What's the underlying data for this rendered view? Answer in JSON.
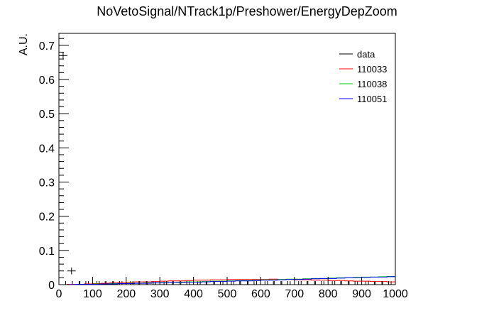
{
  "chart_data": {
    "type": "line",
    "title": "NoVetoSignal/NTrack1p/Preshower/EnergyDepZoom",
    "xlabel": "",
    "ylabel": "A.U.",
    "xlim": [
      0,
      1000
    ],
    "ylim": [
      0,
      0.735
    ],
    "x_ticks": [
      0,
      100,
      200,
      300,
      400,
      500,
      600,
      700,
      800,
      900,
      1000
    ],
    "x_tick_labels": [
      "0",
      "100",
      "200",
      "300",
      "400",
      "500",
      "600",
      "700",
      "800",
      "900",
      "1000"
    ],
    "y_ticks": [
      0,
      0.1,
      0.2,
      0.3,
      0.4,
      0.5,
      0.6,
      0.7
    ],
    "y_tick_labels": [
      "0",
      "0.1",
      "0.2",
      "0.3",
      "0.4",
      "0.5",
      "0.6",
      "0.7"
    ],
    "grid": false,
    "legend_position": "top-right",
    "bin_width": 25,
    "x_bin_edges": [
      0,
      25,
      50,
      75,
      100,
      125,
      150,
      175,
      200,
      225,
      250,
      275,
      300,
      325,
      350,
      375,
      400,
      425,
      450,
      475,
      500,
      525,
      550,
      575,
      600,
      625,
      650,
      675,
      700,
      725,
      750,
      775,
      800,
      825,
      850,
      875,
      900,
      925,
      950,
      975,
      1000
    ],
    "series": [
      {
        "name": "data",
        "color": "#000000",
        "style": "points",
        "values": [
          0.67,
          0.04,
          0.0,
          0.0,
          0.0,
          0.0,
          0.0,
          0.0,
          0.0,
          0.0,
          0.0,
          0.0,
          0.0,
          0.0,
          0.0,
          0.0,
          0.0,
          0.0,
          0.0,
          0.0,
          0.0,
          0.0,
          0.0,
          0.0,
          0.0,
          0.0,
          0.0,
          0.0,
          0.0,
          0.0,
          0.0,
          0.0,
          0.0,
          0.0,
          0.0,
          0.0,
          0.0,
          0.0,
          0.0,
          0.0
        ],
        "errors": [
          0.01,
          0.01,
          0.01,
          0.01,
          0.01,
          0.01,
          0.01,
          0.01,
          0.01,
          0.01,
          0.01,
          0.01,
          0.01,
          0.01,
          0.01,
          0.01,
          0.01,
          0.01,
          0.01,
          0.01,
          0.01,
          0.01,
          0.01,
          0.01,
          0.01,
          0.01,
          0.01,
          0.01,
          0.01,
          0.01,
          0.01,
          0.01,
          0.01,
          0.01,
          0.01,
          0.01,
          0.01,
          0.01,
          0.01,
          0.01
        ]
      },
      {
        "name": "110033",
        "color": "#ff0000",
        "style": "step",
        "values": [
          0.0,
          0.001,
          0.001,
          0.002,
          0.003,
          0.004,
          0.005,
          0.006,
          0.007,
          0.008,
          0.008,
          0.009,
          0.01,
          0.011,
          0.011,
          0.012,
          0.013,
          0.013,
          0.014,
          0.014,
          0.015,
          0.015,
          0.015,
          0.015,
          0.015,
          0.016,
          0.015,
          0.015,
          0.014,
          0.014,
          0.013,
          0.013,
          0.012,
          0.012,
          0.011,
          0.01,
          0.01,
          0.009,
          0.009,
          0.008
        ]
      },
      {
        "name": "110038",
        "color": "#00cc00",
        "style": "step",
        "values": [
          0.0,
          0.0,
          0.001,
          0.001,
          0.002,
          0.002,
          0.003,
          0.003,
          0.004,
          0.004,
          0.005,
          0.005,
          0.006,
          0.006,
          0.007,
          0.008,
          0.008,
          0.009,
          0.01,
          0.01,
          0.011,
          0.012,
          0.012,
          0.013,
          0.014,
          0.014,
          0.015,
          0.016,
          0.016,
          0.017,
          0.018,
          0.018,
          0.019,
          0.02,
          0.02,
          0.021,
          0.022,
          0.022,
          0.023,
          0.024
        ]
      },
      {
        "name": "110051",
        "color": "#0000ff",
        "style": "step",
        "values": [
          0.0,
          0.0,
          0.001,
          0.001,
          0.001,
          0.002,
          0.002,
          0.003,
          0.003,
          0.004,
          0.004,
          0.005,
          0.005,
          0.006,
          0.006,
          0.007,
          0.007,
          0.008,
          0.009,
          0.009,
          0.01,
          0.011,
          0.011,
          0.012,
          0.013,
          0.013,
          0.014,
          0.015,
          0.015,
          0.016,
          0.017,
          0.018,
          0.018,
          0.019,
          0.02,
          0.02,
          0.021,
          0.022,
          0.022,
          0.023
        ]
      }
    ]
  }
}
